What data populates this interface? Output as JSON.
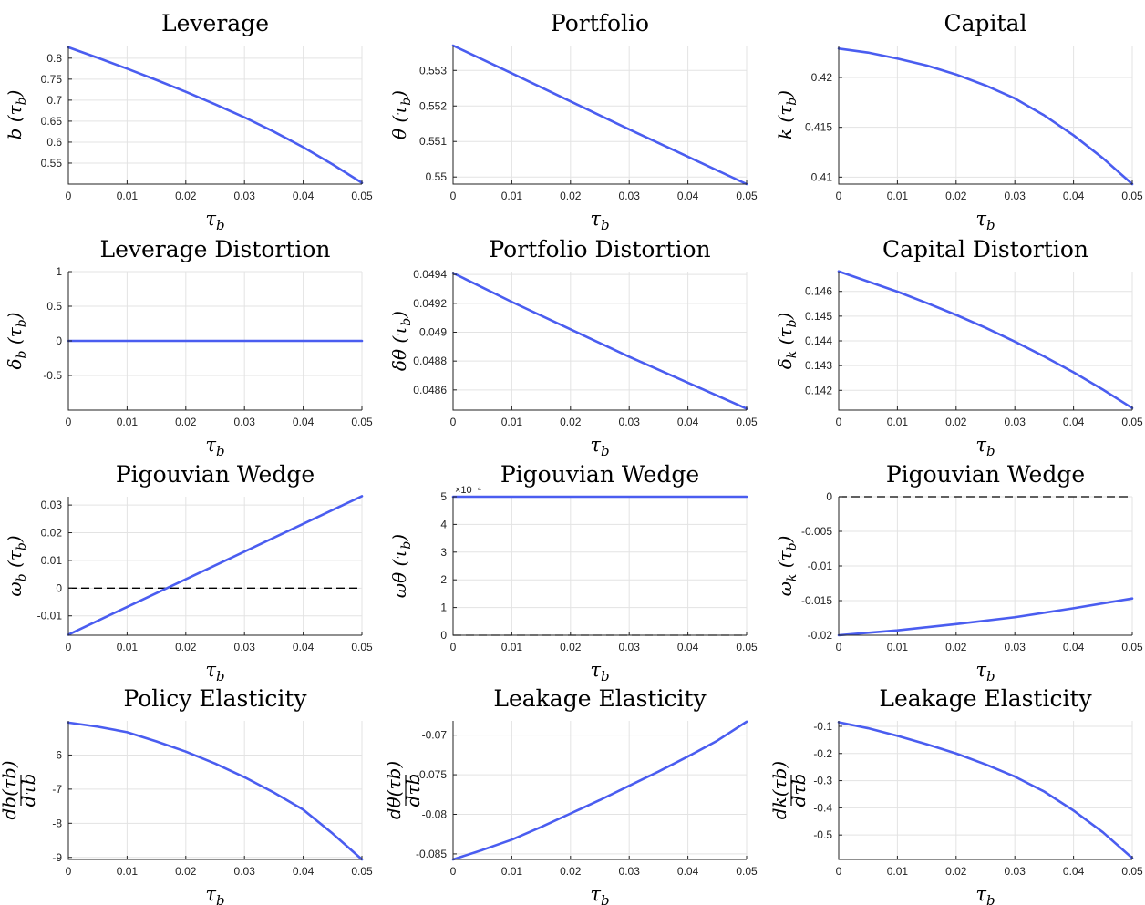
{
  "chart_data": [
    {
      "type": "line",
      "title": "Leverage",
      "xlabel": "τb",
      "ylabel": "b (τb)",
      "xlim": [
        0,
        0.05
      ],
      "ylim": [
        0.5,
        0.83
      ],
      "xticks": [
        0,
        0.01,
        0.02,
        0.03,
        0.04,
        0.05
      ],
      "yticks": [
        0.55,
        0.6,
        0.65,
        0.7,
        0.75,
        0.8
      ],
      "series": [
        {
          "x": [
            0,
            0.005,
            0.01,
            0.015,
            0.02,
            0.025,
            0.03,
            0.035,
            0.04,
            0.045,
            0.05
          ],
          "y": [
            0.826,
            0.801,
            0.775,
            0.748,
            0.72,
            0.69,
            0.659,
            0.625,
            0.588,
            0.547,
            0.503
          ]
        }
      ]
    },
    {
      "type": "line",
      "title": "Portfolio",
      "xlabel": "τb",
      "ylabel": "θ (τb)",
      "xlim": [
        0,
        0.05
      ],
      "ylim": [
        0.5498,
        0.5537
      ],
      "xticks": [
        0,
        0.01,
        0.02,
        0.03,
        0.04,
        0.05
      ],
      "yticks": [
        0.55,
        0.551,
        0.552,
        0.553
      ],
      "series": [
        {
          "x": [
            0,
            0.01,
            0.02,
            0.03,
            0.04,
            0.05
          ],
          "y": [
            0.5537,
            0.55292,
            0.55213,
            0.55134,
            0.55057,
            0.5498
          ]
        }
      ]
    },
    {
      "type": "line",
      "title": "Capital",
      "xlabel": "τb",
      "ylabel": "k (τb)",
      "xlim": [
        0,
        0.05
      ],
      "ylim": [
        0.4093,
        0.4232
      ],
      "xticks": [
        0,
        0.01,
        0.02,
        0.03,
        0.04,
        0.05
      ],
      "yticks": [
        0.41,
        0.415,
        0.42
      ],
      "series": [
        {
          "x": [
            0,
            0.005,
            0.01,
            0.015,
            0.02,
            0.025,
            0.03,
            0.035,
            0.04,
            0.045,
            0.05
          ],
          "y": [
            0.4229,
            0.4225,
            0.4219,
            0.4212,
            0.4203,
            0.4192,
            0.4179,
            0.4162,
            0.4142,
            0.4119,
            0.4093
          ]
        }
      ]
    },
    {
      "type": "line",
      "title": "Leverage Distortion",
      "xlabel": "τb",
      "ylabel": "δb (τb)",
      "xlim": [
        0,
        0.05
      ],
      "ylim": [
        -1,
        1
      ],
      "xticks": [
        0,
        0.01,
        0.02,
        0.03,
        0.04,
        0.05
      ],
      "yticks": [
        -0.5,
        0,
        0.5,
        1
      ],
      "series": [
        {
          "x": [
            0,
            0.05
          ],
          "y": [
            0,
            0
          ]
        }
      ]
    },
    {
      "type": "line",
      "title": "Portfolio Distortion",
      "xlabel": "τb",
      "ylabel": "δθ (τb)",
      "xlim": [
        0,
        0.05
      ],
      "ylim": [
        0.04846,
        0.04942
      ],
      "xticks": [
        0,
        0.01,
        0.02,
        0.03,
        0.04,
        0.05
      ],
      "yticks": [
        0.0486,
        0.0488,
        0.049,
        0.0492,
        0.0494
      ],
      "series": [
        {
          "x": [
            0,
            0.01,
            0.02,
            0.03,
            0.04,
            0.05
          ],
          "y": [
            0.04941,
            0.04921,
            0.04902,
            0.04883,
            0.04865,
            0.04847
          ]
        }
      ]
    },
    {
      "type": "line",
      "title": "Capital Distortion",
      "xlabel": "τb",
      "ylabel": "δk (τb)",
      "xlim": [
        0,
        0.05
      ],
      "ylim": [
        0.1412,
        0.1468
      ],
      "xticks": [
        0,
        0.01,
        0.02,
        0.03,
        0.04,
        0.05
      ],
      "yticks": [
        0.142,
        0.143,
        0.144,
        0.145,
        0.146
      ],
      "series": [
        {
          "x": [
            0,
            0.005,
            0.01,
            0.015,
            0.02,
            0.025,
            0.03,
            0.035,
            0.04,
            0.045,
            0.05
          ],
          "y": [
            0.14681,
            0.1464,
            0.14599,
            0.14553,
            0.14505,
            0.14453,
            0.14397,
            0.14337,
            0.14273,
            0.14203,
            0.14128
          ]
        }
      ]
    },
    {
      "type": "line",
      "title": "Pigouvian Wedge",
      "xlabel": "τb",
      "ylabel": "ωb (τb)",
      "xlim": [
        0,
        0.05
      ],
      "ylim": [
        -0.017,
        0.033
      ],
      "xticks": [
        0,
        0.01,
        0.02,
        0.03,
        0.04,
        0.05
      ],
      "yticks": [
        -0.01,
        0,
        0.01,
        0.02,
        0.03
      ],
      "series": [
        {
          "x": [
            0,
            0.05
          ],
          "y": [
            -0.0168,
            0.0332
          ]
        }
      ],
      "reference_line": {
        "y": 0,
        "style": "dashed"
      }
    },
    {
      "type": "line",
      "title": "Pigouvian Wedge",
      "xlabel": "τb",
      "ylabel": "ωθ (τb)",
      "xlim": [
        0,
        0.05
      ],
      "ylim": [
        0,
        5
      ],
      "y_multiplier": "×10⁻⁴",
      "xticks": [
        0,
        0.01,
        0.02,
        0.03,
        0.04,
        0.05
      ],
      "yticks": [
        0,
        1,
        2,
        3,
        4,
        5
      ],
      "series": [
        {
          "x": [
            0,
            0.05
          ],
          "y": [
            5,
            5
          ]
        }
      ],
      "reference_line": {
        "y": 0,
        "style": "dashed"
      }
    },
    {
      "type": "line",
      "title": "Pigouvian Wedge",
      "xlabel": "τb",
      "ylabel": "ωk (τb)",
      "xlim": [
        0,
        0.05
      ],
      "ylim": [
        -0.02,
        0
      ],
      "xticks": [
        0,
        0.01,
        0.02,
        0.03,
        0.04,
        0.05
      ],
      "yticks": [
        -0.02,
        -0.015,
        -0.01,
        -0.005,
        0
      ],
      "series": [
        {
          "x": [
            0,
            0.01,
            0.02,
            0.03,
            0.04,
            0.05
          ],
          "y": [
            -0.02,
            -0.0193,
            -0.0184,
            -0.0174,
            -0.0161,
            -0.0147
          ]
        }
      ],
      "reference_line": {
        "y": 0,
        "style": "dashed"
      }
    },
    {
      "type": "line",
      "title": "Policy Elasticity",
      "xlabel": "τb",
      "ylabel": "db(τb) / dτb",
      "xlim": [
        0,
        0.05
      ],
      "ylim": [
        -9.06,
        -5.0
      ],
      "xticks": [
        0,
        0.01,
        0.02,
        0.03,
        0.04,
        0.05
      ],
      "yticks": [
        -9,
        -8,
        -7,
        -6
      ],
      "series": [
        {
          "x": [
            0,
            0.005,
            0.01,
            0.015,
            0.02,
            0.025,
            0.03,
            0.035,
            0.04,
            0.045,
            0.05
          ],
          "y": [
            -5.05,
            -5.17,
            -5.33,
            -5.6,
            -5.9,
            -6.25,
            -6.65,
            -7.1,
            -7.6,
            -8.3,
            -9.06
          ]
        }
      ]
    },
    {
      "type": "line",
      "title": "Leakage Elasticity",
      "xlabel": "τb",
      "ylabel": "dθ(τb) / dτb",
      "xlim": [
        0,
        0.05
      ],
      "ylim": [
        -0.0857,
        -0.0682
      ],
      "xticks": [
        0,
        0.01,
        0.02,
        0.03,
        0.04,
        0.05
      ],
      "yticks": [
        -0.085,
        -0.08,
        -0.075,
        -0.07
      ],
      "series": [
        {
          "x": [
            0,
            0.005,
            0.01,
            0.015,
            0.02,
            0.025,
            0.03,
            0.035,
            0.04,
            0.045,
            0.05
          ],
          "y": [
            -0.0857,
            -0.0845,
            -0.0832,
            -0.0816,
            -0.0799,
            -0.0782,
            -0.0764,
            -0.0746,
            -0.0727,
            -0.0707,
            -0.0683
          ]
        }
      ]
    },
    {
      "type": "line",
      "title": "Leakage Elasticity",
      "xlabel": "τb",
      "ylabel": "dk(τb) / dτb",
      "xlim": [
        0,
        0.05
      ],
      "ylim": [
        -0.59,
        -0.08
      ],
      "xticks": [
        0,
        0.01,
        0.02,
        0.03,
        0.04,
        0.05
      ],
      "yticks": [
        -0.5,
        -0.4,
        -0.3,
        -0.2,
        -0.1
      ],
      "series": [
        {
          "x": [
            0,
            0.005,
            0.01,
            0.015,
            0.02,
            0.025,
            0.03,
            0.035,
            0.04,
            0.045,
            0.05
          ],
          "y": [
            -0.085,
            -0.107,
            -0.135,
            -0.166,
            -0.2,
            -0.24,
            -0.285,
            -0.34,
            -0.41,
            -0.49,
            -0.585
          ]
        }
      ]
    }
  ]
}
